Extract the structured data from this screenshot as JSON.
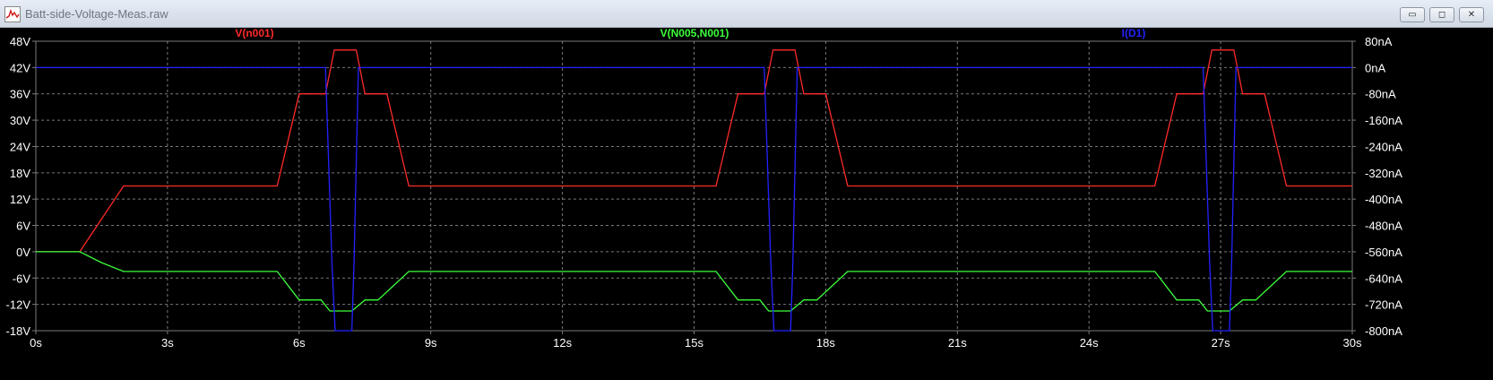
{
  "window": {
    "title": "Batt-side-Voltage-Meas.raw",
    "buttons": [
      {
        "name": "minimize",
        "icon": "minimize-icon",
        "glyph": "▭"
      },
      {
        "name": "maximize",
        "icon": "maximize-icon",
        "glyph": "◻"
      },
      {
        "name": "close",
        "icon": "close-icon",
        "glyph": "✕"
      }
    ]
  },
  "colors": {
    "background": "#000000",
    "grid": "#7a7a7a",
    "axis_text": "#ffffff",
    "series_red": "#ff2a2a",
    "series_green": "#3cff3c",
    "series_blue": "#2222ff"
  },
  "chart_data": {
    "type": "line",
    "grid": true,
    "legend_placement": "top",
    "x_axis": {
      "range": [
        0,
        30
      ],
      "ticks": [
        0,
        3,
        6,
        9,
        12,
        15,
        18,
        21,
        24,
        27,
        30
      ],
      "tick_labels": [
        "0s",
        "3s",
        "6s",
        "9s",
        "12s",
        "15s",
        "18s",
        "21s",
        "24s",
        "27s",
        "30s"
      ]
    },
    "y_left": {
      "range": [
        -18,
        48
      ],
      "ticks": [
        48,
        42,
        36,
        30,
        24,
        18,
        12,
        6,
        0,
        -6,
        -12,
        -18
      ],
      "tick_labels": [
        "48V",
        "42V",
        "36V",
        "30V",
        "24V",
        "18V",
        "12V",
        "6V",
        "0V",
        "-6V",
        "-12V",
        "-18V"
      ]
    },
    "y_right": {
      "range": [
        -800,
        80
      ],
      "ticks": [
        80,
        0,
        -80,
        -160,
        -240,
        -320,
        -400,
        -480,
        -560,
        -640,
        -720,
        -800
      ],
      "tick_labels": [
        "80nA",
        "0nA",
        "-80nA",
        "-160nA",
        "-240nA",
        "-320nA",
        "-400nA",
        "-480nA",
        "-560nA",
        "-640nA",
        "-720nA",
        "-800nA"
      ]
    },
    "series": [
      {
        "name": "V(n001)",
        "color": "#ff2a2a",
        "axis": "left",
        "x": [
          0,
          1,
          2,
          5.5,
          6,
          6.6,
          6.8,
          7.3,
          7.5,
          8,
          8.5,
          15.5,
          16,
          16.6,
          16.8,
          17.3,
          17.5,
          18,
          18.5,
          25.5,
          26,
          26.6,
          26.8,
          27.3,
          27.5,
          28,
          28.5,
          30
        ],
        "y": [
          0,
          0,
          15,
          15,
          36,
          36,
          46,
          46,
          36,
          36,
          15,
          15,
          36,
          36,
          46,
          46,
          36,
          36,
          15,
          15,
          36,
          36,
          46,
          46,
          36,
          36,
          15,
          15
        ]
      },
      {
        "name": "V(N005,N001)",
        "color": "#3cff3c",
        "axis": "left",
        "x": [
          0,
          1,
          1.5,
          2,
          5.5,
          6,
          6.5,
          6.7,
          7.2,
          7.5,
          7.8,
          8.5,
          15.5,
          16,
          16.5,
          16.7,
          17.2,
          17.5,
          17.8,
          18.5,
          25.5,
          26,
          26.5,
          26.7,
          27.2,
          27.5,
          27.8,
          28.5,
          30
        ],
        "y": [
          0,
          0,
          -2.5,
          -4.5,
          -4.5,
          -11,
          -11,
          -13.5,
          -13.5,
          -11,
          -11,
          -4.5,
          -4.5,
          -11,
          -11,
          -13.5,
          -13.5,
          -11,
          -11,
          -4.5,
          -4.5,
          -11,
          -11,
          -13.5,
          -13.5,
          -11,
          -11,
          -4.5,
          -4.5
        ]
      },
      {
        "name": "I(D1)",
        "color": "#2222ff",
        "axis": "right",
        "x": [
          0,
          6.6,
          6.75,
          6.82,
          7.2,
          7.25,
          7.35,
          16.6,
          16.75,
          16.82,
          17.2,
          17.25,
          17.35,
          26.6,
          26.75,
          26.82,
          27.2,
          27.25,
          27.35,
          30
        ],
        "y": [
          0,
          0,
          -600,
          -800,
          -800,
          -600,
          0,
          0,
          -600,
          -800,
          -800,
          -600,
          0,
          0,
          -600,
          -800,
          -800,
          -600,
          0,
          0
        ]
      }
    ]
  }
}
